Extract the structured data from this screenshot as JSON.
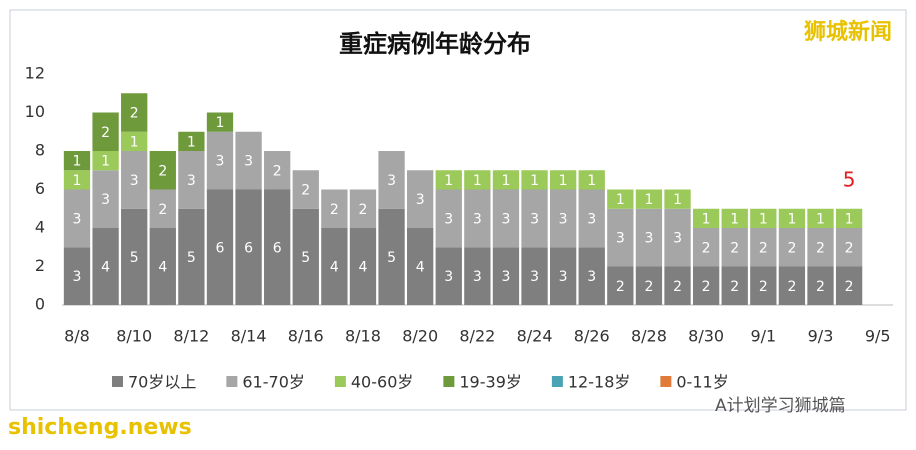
{
  "chart_data": {
    "type": "stacked_bar",
    "title": "重症病例年龄分布",
    "categories": [
      "8/8",
      null,
      "8/10",
      null,
      "8/12",
      null,
      "8/14",
      null,
      "8/16",
      null,
      "8/18",
      null,
      "8/20",
      null,
      "8/22",
      null,
      "8/24",
      null,
      "8/26",
      null,
      "8/28",
      null,
      "8/30",
      null,
      "9/1",
      null,
      "9/3",
      null,
      "9/5"
    ],
    "series": [
      {
        "name": "70岁以上",
        "color": "#7f7f7f",
        "values": [
          3,
          4,
          5,
          4,
          5,
          6,
          6,
          6,
          5,
          4,
          4,
          5,
          4,
          3,
          3,
          3,
          3,
          3,
          3,
          2,
          2,
          2,
          2,
          2,
          2,
          2,
          2,
          2,
          null
        ]
      },
      {
        "name": "61-70岁",
        "color": "#a6a6a6",
        "values": [
          3,
          3,
          3,
          2,
          3,
          3,
          3,
          2,
          2,
          2,
          2,
          3,
          3,
          3,
          3,
          3,
          3,
          3,
          3,
          3,
          3,
          3,
          2,
          2,
          2,
          2,
          2,
          2,
          null
        ]
      },
      {
        "name": "40-60岁",
        "color": "#9bc95a",
        "values": [
          1,
          1,
          1,
          null,
          null,
          null,
          null,
          null,
          null,
          null,
          null,
          null,
          null,
          1,
          1,
          1,
          1,
          1,
          1,
          1,
          1,
          1,
          1,
          1,
          1,
          1,
          1,
          1,
          null
        ]
      },
      {
        "name": "19-39岁",
        "color": "#6e9a3c",
        "values": [
          1,
          2,
          2,
          2,
          1,
          1,
          null,
          null,
          null,
          null,
          null,
          null,
          null,
          null,
          null,
          null,
          null,
          null,
          null,
          null,
          null,
          null,
          null,
          null,
          null,
          null,
          null,
          null,
          null
        ]
      },
      {
        "name": "12-18岁",
        "color": "#4aa3b5",
        "values": [
          null,
          null,
          null,
          null,
          null,
          null,
          null,
          null,
          null,
          null,
          null,
          null,
          null,
          null,
          null,
          null,
          null,
          null,
          null,
          null,
          null,
          null,
          null,
          null,
          null,
          null,
          null,
          null,
          null
        ]
      },
      {
        "name": "0-11岁",
        "color": "#e07b39",
        "values": [
          null,
          null,
          null,
          null,
          null,
          null,
          null,
          null,
          null,
          null,
          null,
          null,
          null,
          null,
          null,
          null,
          null,
          null,
          null,
          null,
          null,
          null,
          null,
          null,
          null,
          null,
          null,
          null,
          null
        ]
      }
    ],
    "ylim": [
      0,
      12
    ],
    "yticks": [
      0,
      2,
      4,
      6,
      8,
      10,
      12
    ],
    "grid": false,
    "annotation": "5",
    "watermark_top": "狮城新闻",
    "watermark_site": "shicheng.news",
    "watermark_account": "A计划学习狮城篇"
  }
}
